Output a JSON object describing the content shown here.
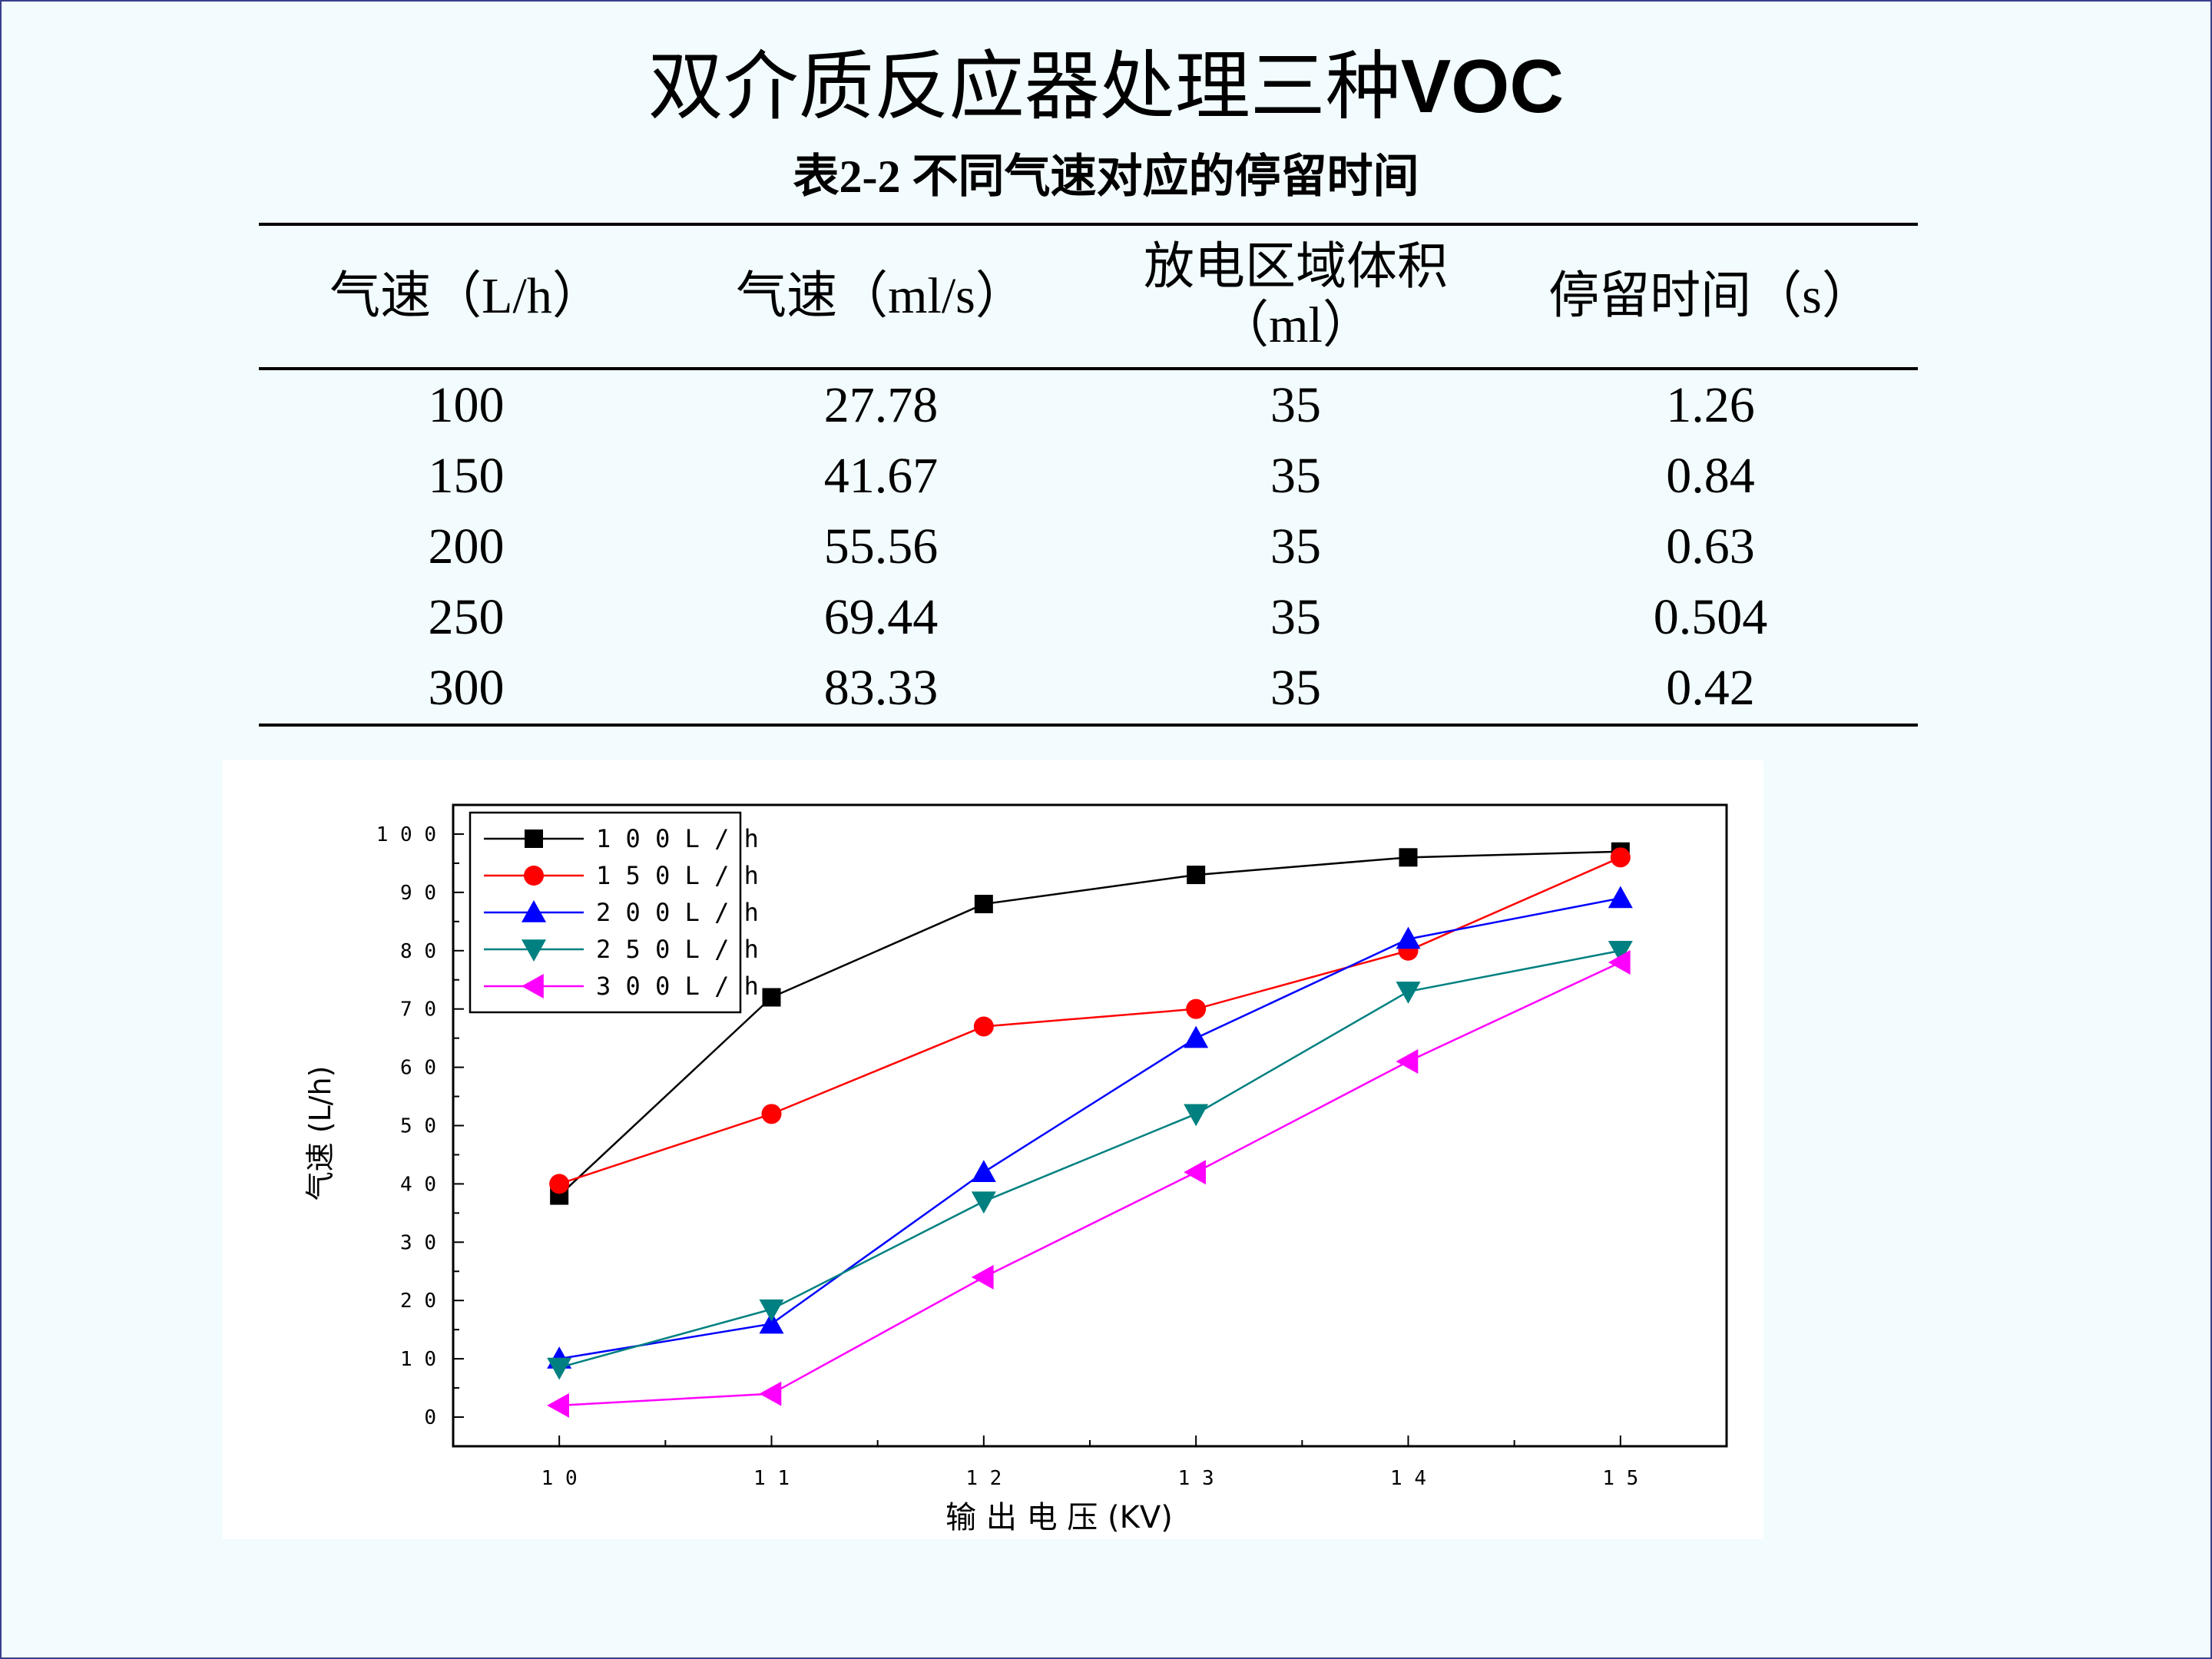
{
  "slide": {
    "title_cn": "双介质反应器处理三种",
    "title_en": "VOC"
  },
  "table": {
    "caption": "表2-2  不同气速对应的停留时间",
    "headers": [
      "气速（L/h）",
      "气速（ml/s）",
      "放电区域体积（ml）",
      "停留时间（s）"
    ],
    "rows": [
      [
        "100",
        "27.78",
        "35",
        "1.26"
      ],
      [
        "150",
        "41.67",
        "35",
        "0.84"
      ],
      [
        "200",
        "55.56",
        "35",
        "0.63"
      ],
      [
        "250",
        "69.44",
        "35",
        "0.504"
      ],
      [
        "300",
        "83.33",
        "35",
        "0.42"
      ]
    ]
  },
  "chart_data": {
    "type": "line",
    "title": "",
    "xlabel": "输 出 电 压  (KV)",
    "ylabel": "气速 (L/h)",
    "x": [
      10,
      11,
      12,
      13,
      14,
      15
    ],
    "x_tick_labels": [
      "1 0",
      "1 1",
      "1 2",
      "1 3",
      "1 4",
      "1 5"
    ],
    "y_tick_labels": [
      "0",
      "1 0",
      "2 0",
      "3 0",
      "4 0",
      "5 0",
      "6 0",
      "7 0",
      "8 0",
      "9 0",
      "1 0 0"
    ],
    "xlim": [
      9.5,
      15.5
    ],
    "ylim": [
      -5,
      105
    ],
    "grid": false,
    "legend_position": "top-left",
    "series": [
      {
        "name": "1 0 0 L / h",
        "color": "#000000",
        "marker": "square",
        "values": [
          38,
          72,
          88,
          93,
          96,
          97
        ]
      },
      {
        "name": "1 5 0 L / h",
        "color": "#ff0000",
        "marker": "circle",
        "values": [
          40,
          52,
          67,
          70,
          80,
          96
        ]
      },
      {
        "name": "2 0 0 L / h",
        "color": "#0000ff",
        "marker": "triangle-up",
        "values": [
          10,
          16,
          42,
          65,
          82,
          89
        ]
      },
      {
        "name": "2 5 0 L / h",
        "color": "#008080",
        "marker": "triangle-down",
        "values": [
          8.5,
          18.5,
          37,
          52,
          73,
          80
        ]
      },
      {
        "name": "3 0 0 L / h",
        "color": "#ff00ff",
        "marker": "triangle-left",
        "values": [
          2,
          4,
          24,
          42,
          61,
          78
        ]
      }
    ]
  }
}
